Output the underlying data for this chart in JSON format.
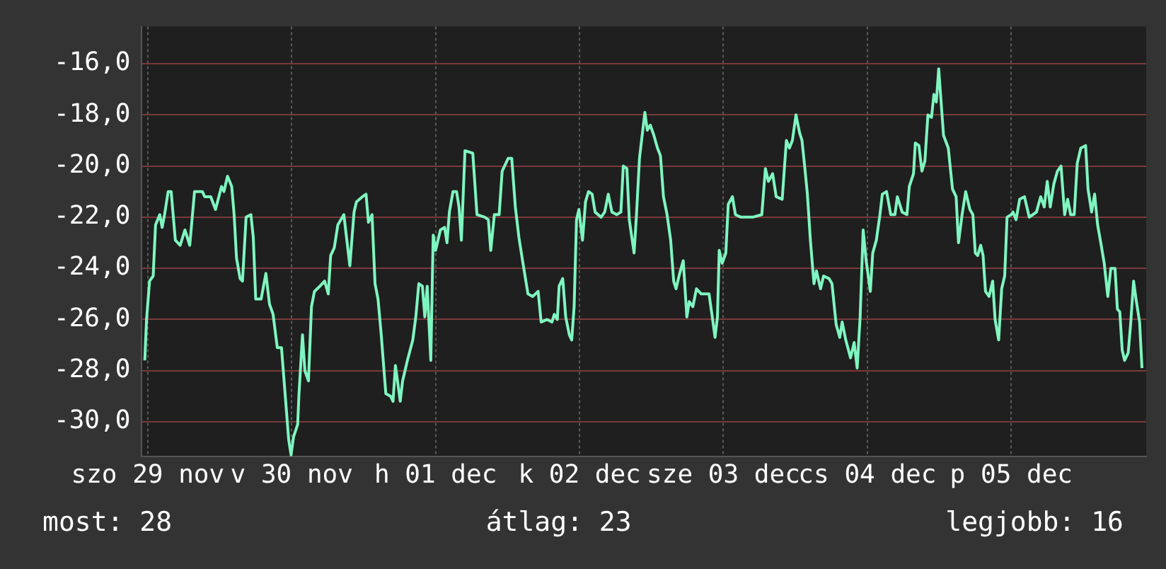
{
  "chart_data": {
    "type": "line",
    "grid": true,
    "color": "#7ff5c0",
    "xlim": [
      "--11-29T11:00",
      "--12-06T10:30"
    ],
    "xticks": [
      {
        "value": "--11-29T12:00",
        "label": "szo 29 nov"
      },
      {
        "value": "--11-30T12:00",
        "label": "v 30 nov"
      },
      {
        "value": "--12-01T12:00",
        "label": "h 01 dec"
      },
      {
        "value": "--12-02T12:00",
        "label": "k 02 dec"
      },
      {
        "value": "--12-03T12:00",
        "label": "sze 03 dec"
      },
      {
        "value": "--12-04T12:00",
        "label": "cs 04 dec"
      },
      {
        "value": "--12-05T12:00",
        "label": "p 05 dec"
      }
    ],
    "ylim": [
      -31.35,
      -14.55
    ],
    "yticks": [
      {
        "value": -16,
        "label": "-16,0"
      },
      {
        "value": -18,
        "label": "-18,0"
      },
      {
        "value": -20,
        "label": "-20,0"
      },
      {
        "value": -22,
        "label": "-22,0"
      },
      {
        "value": -24,
        "label": "-24,0"
      },
      {
        "value": -26,
        "label": "-26,0"
      },
      {
        "value": -28,
        "label": "-28,0"
      },
      {
        "value": -30,
        "label": "-30,0"
      }
    ],
    "annotations": [
      "most: 28",
      "átlag: 23",
      "legjobb: 16"
    ],
    "x": [
      "--11-29T11:30",
      "--11-29T11:48",
      "--11-29T12:18",
      "--11-29T12:54",
      "--11-29T13:18",
      "--11-29T14:00",
      "--11-29T14:24",
      "--11-29T14:48",
      "--11-29T15:24",
      "--11-29T15:54",
      "--11-29T16:36",
      "--11-29T17:24",
      "--11-29T18:12",
      "--11-29T19:00",
      "--11-29T19:48",
      "--11-29T21:06",
      "--11-29T21:30",
      "--11-29T22:30",
      "--11-29T23:18",
      "--11-30T00:18",
      "--11-30T00:42",
      "--11-30T01:18",
      "--11-30T02:00",
      "--11-30T02:24",
      "--11-30T02:48",
      "--11-30T03:24",
      "--11-30T03:48",
      "--11-30T04:24",
      "--11-30T05:12",
      "--11-30T05:36",
      "--11-30T06:00",
      "--11-30T06:54",
      "--11-30T07:42",
      "--11-30T08:18",
      "--11-30T08:54",
      "--11-30T09:36",
      "--11-30T10:18",
      "--11-30T10:54",
      "--11-30T11:30",
      "--11-30T11:54",
      "--11-30T12:18",
      "--11-30T13:00",
      "--11-30T13:12",
      "--11-30T13:48",
      "--11-30T14:12",
      "--11-30T14:48",
      "--11-30T15:18",
      "--11-30T15:48",
      "--11-30T16:42",
      "--11-30T17:30",
      "--11-30T18:06",
      "--11-30T18:30",
      "--11-30T19:06",
      "--11-30T19:42",
      "--11-30T20:42",
      "--11-30T21:06",
      "--11-30T21:42",
      "--11-30T22:24",
      "--11-30T22:48",
      "--11-30T23:48",
      "--12-01T00:24",
      "--12-01T00:48",
      "--12-01T01:24",
      "--12-01T01:54",
      "--12-01T02:24",
      "--12-01T02:54",
      "--12-01T03:42",
      "--12-01T04:30",
      "--12-01T04:54",
      "--12-01T05:18",
      "--12-01T06:06",
      "--12-01T06:30",
      "--12-01T07:18",
      "--12-01T08:12",
      "--12-01T08:42",
      "--12-01T09:12",
      "--12-01T09:48",
      "--12-01T10:12",
      "--12-01T10:36",
      "--12-01T11:12",
      "--12-01T11:36",
      "--12-01T12:00",
      "--12-01T12:48",
      "--12-01T13:30",
      "--12-01T13:54",
      "--12-01T14:18",
      "--12-01T14:54",
      "--12-01T15:30",
      "--12-01T15:54",
      "--12-01T16:18",
      "--12-01T16:54",
      "--12-01T18:12",
      "--12-01T18:54",
      "--12-01T20:12",
      "--12-01T20:48",
      "--12-01T21:12",
      "--12-01T21:48",
      "--12-01T22:36",
      "--12-01T23:06",
      "--12-02T00:06",
      "--12-02T00:42",
      "--12-02T01:18",
      "--12-02T01:54",
      "--12-02T02:30",
      "--12-02T03:24",
      "--12-02T04:12",
      "--12-02T05:06",
      "--12-02T05:36",
      "--12-02T06:36",
      "--12-02T07:24",
      "--12-02T07:48",
      "--12-02T08:18",
      "--12-02T08:36",
      "--12-02T09:12",
      "--12-02T09:42",
      "--12-02T10:18",
      "--12-02T10:42",
      "--12-02T11:06",
      "--12-02T11:30",
      "--12-02T11:54",
      "--12-02T12:30",
      "--12-02T13:00",
      "--12-02T13:30",
      "--12-02T14:06",
      "--12-02T14:36",
      "--12-02T15:36",
      "--12-02T16:12",
      "--12-02T16:48",
      "--12-02T17:24",
      "--12-02T18:12",
      "--12-02T18:54",
      "--12-02T19:18",
      "--12-02T19:54",
      "--12-02T20:18",
      "--12-02T21:06",
      "--12-02T21:30",
      "--12-02T22:00",
      "--12-02T22:30",
      "--12-02T22:54",
      "--12-02T23:18",
      "--12-02T23:48",
      "--12-03T00:24",
      "--12-03T01:00",
      "--12-03T01:30",
      "--12-03T02:00",
      "--12-03T02:36",
      "--12-03T03:12",
      "--12-03T03:42",
      "--12-03T04:06",
      "--12-03T04:42",
      "--12-03T05:18",
      "--12-03T05:54",
      "--12-03T06:18",
      "--12-03T06:54",
      "--12-03T07:30",
      "--12-03T08:18",
      "--12-03T09:36",
      "--12-03T10:12",
      "--12-03T10:36",
      "--12-03T11:00",
      "--12-03T11:18",
      "--12-03T11:48",
      "--12-03T12:24",
      "--12-03T12:48",
      "--12-03T13:30",
      "--12-03T14:00",
      "--12-03T14:54",
      "--12-03T16:54",
      "--12-03T18:24",
      "--12-03T19:00",
      "--12-03T19:30",
      "--12-03T20:12",
      "--12-03T20:48",
      "--12-03T21:48",
      "--12-03T22:30",
      "--12-03T23:00",
      "--12-03T23:30",
      "--12-04T00:06",
      "--12-04T00:42",
      "--12-04T01:06",
      "--12-04T01:30",
      "--12-04T02:00",
      "--12-04T02:30",
      "--12-04T03:06",
      "--12-04T03:30",
      "--12-04T04:12",
      "--12-04T04:42",
      "--12-04T05:36",
      "--12-04T06:06",
      "--12-04T06:48",
      "--12-04T07:24",
      "--12-04T07:48",
      "--12-04T08:24",
      "--12-04T09:12",
      "--12-04T09:48",
      "--12-04T10:18",
      "--12-04T10:48",
      "--12-04T11:18",
      "--12-04T11:48",
      "--12-04T12:30",
      "--12-04T12:54",
      "--12-04T13:30",
      "--12-04T14:06",
      "--12-04T14:30",
      "--12-04T15:12",
      "--12-04T15:54",
      "--12-04T16:36",
      "--12-04T17:00",
      "--12-04T17:48",
      "--12-04T18:36",
      "--12-04T19:00",
      "--12-04T19:42",
      "--12-04T20:00",
      "--12-04T20:36",
      "--12-04T21:06",
      "--12-04T21:36",
      "--12-04T22:06",
      "--12-04T22:42",
      "--12-04T23:06",
      "--12-04T23:30",
      "--12-04T23:54",
      "--12-05T00:18",
      "--12-05T00:42",
      "--12-05T01:30",
      "--12-05T02:12",
      "--12-05T02:48",
      "--12-05T03:12",
      "--12-05T03:48",
      "--12-05T04:24",
      "--12-05T05:06",
      "--12-05T05:36",
      "--12-05T06:00",
      "--12-05T06:24",
      "--12-05T06:54",
      "--12-05T07:18",
      "--12-05T07:42",
      "--12-05T08:18",
      "--12-05T08:54",
      "--12-05T09:18",
      "--12-05T09:54",
      "--12-05T10:24",
      "--12-05T10:54",
      "--12-05T11:18",
      "--12-05T12:00",
      "--12-05T12:18",
      "--12-05T12:48",
      "--12-05T13:24",
      "--12-05T14:12",
      "--12-05T15:00",
      "--12-05T15:36",
      "--12-05T16:12",
      "--12-05T16:54",
      "--12-05T17:30",
      "--12-05T18:00",
      "--12-05T18:30",
      "--12-05T19:06",
      "--12-05T19:42",
      "--12-05T20:18",
      "--12-05T20:54",
      "--12-05T21:24",
      "--12-05T21:54",
      "--12-05T22:30",
      "--12-05T23:00",
      "--12-05T23:36",
      "--12-06T00:24",
      "--12-06T00:48",
      "--12-06T01:24",
      "--12-06T01:54",
      "--12-06T02:24",
      "--12-06T03:00",
      "--12-06T03:30",
      "--12-06T04:06",
      "--12-06T04:36",
      "--12-06T05:18",
      "--12-06T05:42",
      "--12-06T06:06",
      "--12-06T06:30",
      "--12-06T06:54",
      "--12-06T07:30",
      "--12-06T07:54",
      "--12-06T08:24",
      "--12-06T08:48",
      "--12-06T09:24",
      "--12-06T09:48"
    ],
    "values": [
      -27.6,
      -26.0,
      -24.5,
      -24.3,
      -22.3,
      -21.9,
      -22.4,
      -21.9,
      -21.0,
      -21.0,
      -22.9,
      -23.1,
      -22.5,
      -23.1,
      -21.0,
      -21.0,
      -21.2,
      -21.2,
      -21.7,
      -20.8,
      -21.0,
      -20.4,
      -20.8,
      -21.9,
      -23.6,
      -24.4,
      -24.5,
      -22.0,
      -21.9,
      -22.8,
      -25.2,
      -25.2,
      -24.2,
      -25.4,
      -25.8,
      -27.1,
      -27.1,
      -28.9,
      -30.7,
      -31.3,
      -30.6,
      -30.1,
      -29.0,
      -26.6,
      -28.0,
      -28.4,
      -25.5,
      -24.9,
      -24.7,
      -24.5,
      -25.0,
      -23.5,
      -23.2,
      -22.3,
      -21.9,
      -22.7,
      -23.9,
      -21.8,
      -21.4,
      -21.2,
      -21.1,
      -22.2,
      -21.9,
      -24.6,
      -25.2,
      -26.5,
      -28.9,
      -29.0,
      -29.2,
      -27.8,
      -29.2,
      -28.4,
      -27.6,
      -26.8,
      -25.9,
      -24.6,
      -24.7,
      -25.9,
      -24.7,
      -27.6,
      -22.7,
      -23.3,
      -22.5,
      -22.4,
      -23.0,
      -21.8,
      -21.0,
      -21.0,
      -21.6,
      -22.9,
      -19.4,
      -19.5,
      -21.9,
      -22.0,
      -22.1,
      -23.3,
      -21.9,
      -21.9,
      -20.2,
      -19.7,
      -19.7,
      -21.6,
      -22.8,
      -23.7,
      -25.0,
      -25.1,
      -24.9,
      -26.1,
      -26.0,
      -26.1,
      -25.8,
      -26.0,
      -24.7,
      -24.4,
      -25.9,
      -26.6,
      -26.8,
      -25.5,
      -22.1,
      -21.7,
      -22.9,
      -21.4,
      -21.0,
      -21.1,
      -21.8,
      -22.0,
      -21.8,
      -21.1,
      -21.8,
      -21.9,
      -21.8,
      -20.0,
      -20.1,
      -22.1,
      -23.4,
      -21.9,
      -19.7,
      -18.7,
      -17.9,
      -18.6,
      -18.4,
      -18.8,
      -19.3,
      -19.6,
      -21.2,
      -21.9,
      -22.9,
      -24.5,
      -24.8,
      -24.2,
      -23.7,
      -25.9,
      -25.3,
      -25.5,
      -24.8,
      -25.0,
      -25.0,
      -26.0,
      -26.7,
      -25.9,
      -23.3,
      -23.8,
      -23.4,
      -21.5,
      -21.2,
      -21.9,
      -22.0,
      -22.0,
      -21.9,
      -20.1,
      -20.6,
      -20.3,
      -21.2,
      -21.3,
      -19.0,
      -19.3,
      -19.0,
      -18.0,
      -18.7,
      -19.0,
      -19.9,
      -21.1,
      -22.9,
      -24.6,
      -24.1,
      -24.8,
      -24.3,
      -24.4,
      -24.6,
      -26.2,
      -26.7,
      -26.1,
      -26.8,
      -27.5,
      -26.9,
      -27.9,
      -25.9,
      -22.5,
      -23.7,
      -24.9,
      -23.4,
      -22.9,
      -21.9,
      -21.1,
      -21.0,
      -21.9,
      -21.9,
      -21.2,
      -21.8,
      -21.9,
      -20.8,
      -20.3,
      -19.1,
      -19.2,
      -20.2,
      -19.8,
      -18.0,
      -18.1,
      -17.2,
      -17.5,
      -16.2,
      -17.5,
      -18.8,
      -19.3,
      -20.9,
      -21.2,
      -23.0,
      -21.9,
      -21.0,
      -21.7,
      -21.9,
      -23.4,
      -23.5,
      -23.1,
      -23.5,
      -24.9,
      -25.1,
      -24.5,
      -26.0,
      -26.8,
      -24.8,
      -24.3,
      -22.0,
      -21.9,
      -21.8,
      -22.1,
      -21.3,
      -21.2,
      -22.0,
      -21.9,
      -21.8,
      -21.2,
      -21.6,
      -20.6,
      -21.6,
      -20.7,
      -20.2,
      -20.0,
      -21.9,
      -21.3,
      -21.9,
      -21.9,
      -19.9,
      -19.3,
      -19.2,
      -20.9,
      -21.8,
      -21.1,
      -22.3,
      -23.1,
      -23.8,
      -25.1,
      -24.0,
      -24.0,
      -25.6,
      -25.7,
      -27.2,
      -27.6,
      -27.3,
      -26.2,
      -24.5,
      -25.2,
      -26.1,
      -27.9
    ]
  }
}
